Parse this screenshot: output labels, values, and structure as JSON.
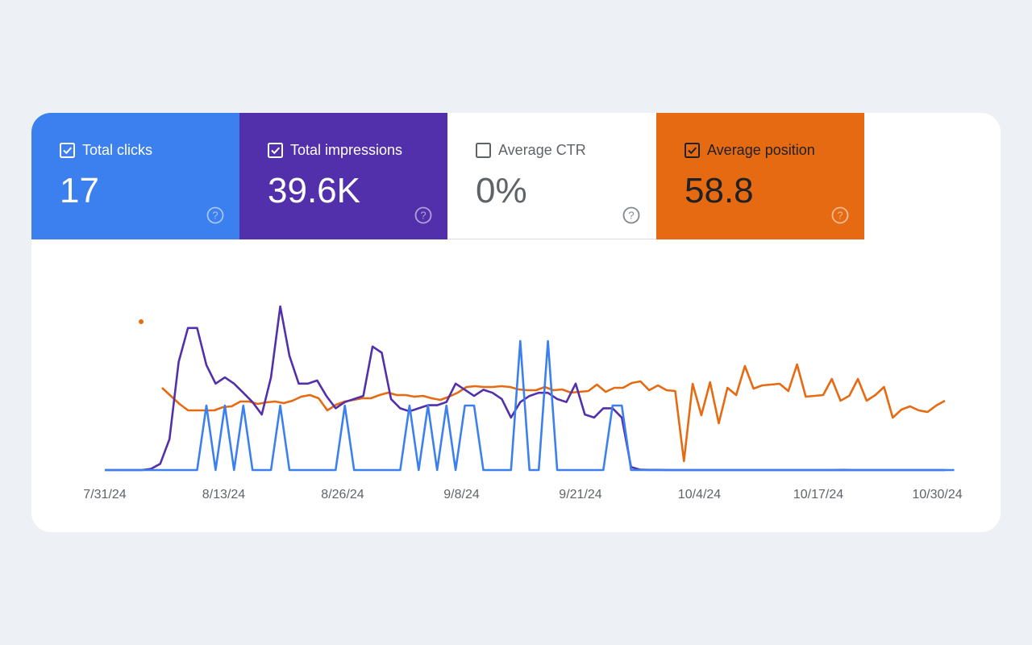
{
  "metrics": {
    "clicks": {
      "label": "Total clicks",
      "value": "17",
      "checked": true,
      "color": "#3b80ee"
    },
    "impressions": {
      "label": "Total impressions",
      "value": "39.6K",
      "checked": true,
      "color": "#5330ab"
    },
    "ctr": {
      "label": "Average CTR",
      "value": "0%",
      "checked": false,
      "color": "#ffffff"
    },
    "position": {
      "label": "Average position",
      "value": "58.8",
      "checked": true,
      "color": "#e66a12"
    }
  },
  "chart_data": {
    "type": "line",
    "x_tick_labels": [
      "7/31/24",
      "8/13/24",
      "8/26/24",
      "9/8/24",
      "9/21/24",
      "10/4/24",
      "10/17/24",
      "10/30/24"
    ],
    "x_start": "7/31/24",
    "x_end": "10/30/24",
    "grid": false,
    "series": [
      {
        "name": "Total clicks",
        "color": "#3b80ee",
        "values": [
          0,
          0,
          0,
          0,
          0,
          0,
          0,
          0,
          0,
          0,
          0,
          1,
          0,
          1,
          0,
          1,
          0,
          0,
          0,
          1,
          0,
          0,
          0,
          0,
          0,
          0,
          1,
          0,
          0,
          0,
          0,
          0,
          0,
          1,
          0,
          1,
          0,
          1,
          0,
          1,
          1,
          0,
          0,
          0,
          0,
          2,
          0,
          0,
          2,
          0,
          0,
          0,
          0,
          0,
          0,
          1,
          1,
          0,
          0,
          0,
          0,
          0,
          0,
          0,
          0,
          0,
          0,
          0,
          0,
          0,
          0,
          0,
          0,
          0,
          0,
          0,
          0,
          0,
          0,
          0,
          0,
          0,
          0,
          0,
          0,
          0,
          0,
          0,
          0,
          0,
          0,
          0,
          0
        ]
      },
      {
        "name": "Total impressions",
        "color": "#5330ab",
        "values": [
          0,
          0,
          0,
          0,
          0,
          0.4,
          2,
          10,
          35,
          46,
          46,
          34,
          28,
          30,
          28,
          25,
          22,
          18,
          30,
          53,
          37,
          28,
          28,
          29,
          24,
          20,
          22,
          23,
          24,
          40,
          38,
          23,
          20,
          19,
          20,
          21,
          21,
          22,
          28,
          26,
          24,
          26,
          25,
          23,
          17,
          22,
          24,
          25,
          25,
          23,
          22,
          28,
          18,
          17,
          20,
          20,
          17,
          1,
          0.1,
          0.05,
          0.05,
          0,
          0,
          0,
          0,
          0,
          0,
          0,
          0,
          0,
          0,
          0,
          0,
          0,
          0,
          0,
          0,
          0,
          0,
          0,
          0.05,
          0,
          0,
          0,
          0,
          0,
          0,
          0,
          0,
          0,
          0,
          0
        ]
      },
      {
        "name": "Average position",
        "color": "#e66a12",
        "values": [
          null,
          null,
          null,
          null,
          19.5,
          null,
          null,
          null,
          null,
          null,
          null,
          null,
          null,
          null,
          null,
          null,
          null,
          null,
          null,
          null,
          null,
          null,
          null,
          null,
          null,
          null,
          null,
          null,
          null,
          null,
          null,
          null,
          null,
          null,
          null,
          null,
          null,
          null,
          null,
          null,
          null,
          null,
          null,
          null,
          null,
          null,
          null,
          null,
          null,
          null,
          null,
          null,
          null,
          null,
          null,
          null,
          null,
          null,
          null,
          null,
          null,
          null,
          null,
          null,
          null,
          null,
          null,
          null,
          null,
          null,
          null,
          null,
          null,
          null,
          null,
          null,
          null,
          null,
          null,
          null,
          null,
          null,
          null,
          null,
          null,
          null,
          null,
          null,
          null,
          null,
          null,
          null
        ]
      }
    ]
  }
}
